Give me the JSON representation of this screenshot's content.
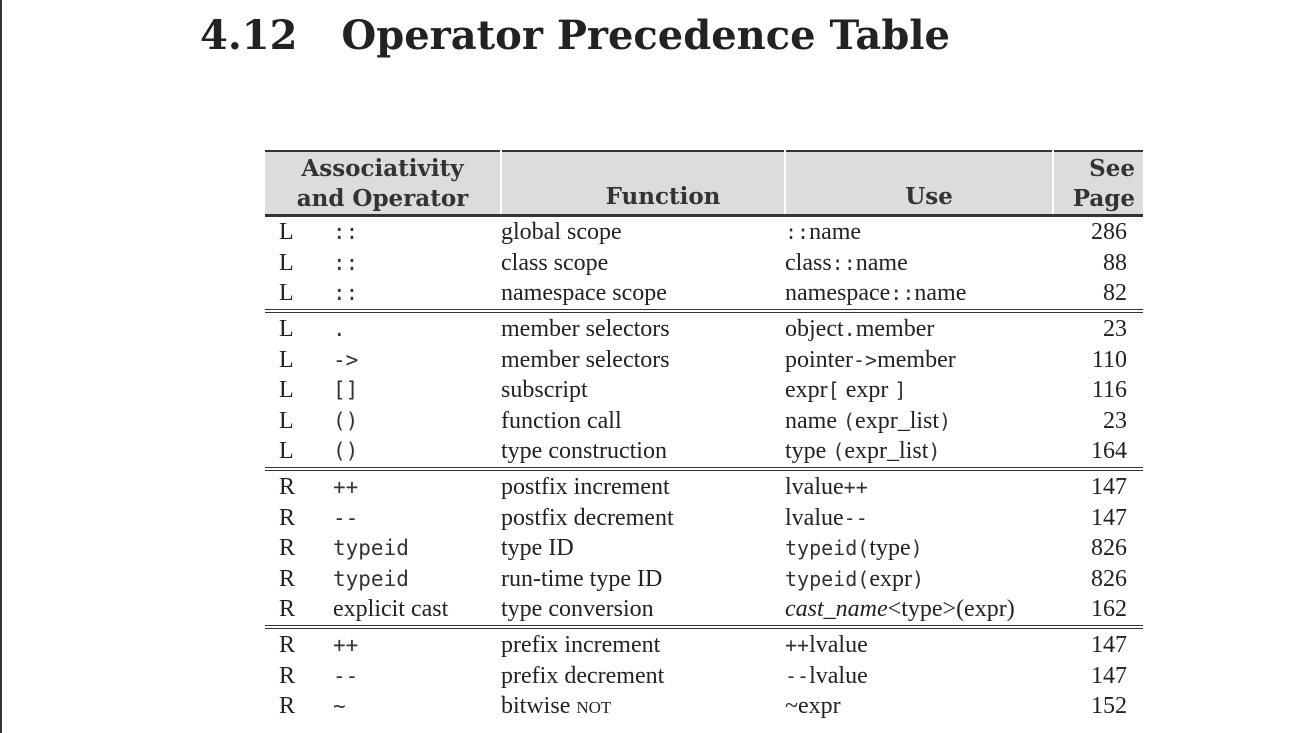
{
  "section": {
    "number": "4.12",
    "title": "Operator Precedence Table"
  },
  "table": {
    "headers": {
      "assoc_line1": "Associativity",
      "assoc_line2": "and Operator",
      "function": "Function",
      "use": "Use",
      "page_line1": "See",
      "page_line2": "Page"
    },
    "groups": [
      [
        {
          "assoc": "L",
          "op": "::",
          "function": "global scope",
          "use": [
            {
              "t": "::",
              "s": "mono"
            },
            {
              "t": "name"
            }
          ],
          "page": "286"
        },
        {
          "assoc": "L",
          "op": "::",
          "function": "class scope",
          "use": [
            {
              "t": "class"
            },
            {
              "t": "::",
              "s": "mono"
            },
            {
              "t": "name"
            }
          ],
          "page": "88"
        },
        {
          "assoc": "L",
          "op": "::",
          "function": "namespace scope",
          "use": [
            {
              "t": "namespace"
            },
            {
              "t": "::",
              "s": "mono"
            },
            {
              "t": "name"
            }
          ],
          "page": "82"
        }
      ],
      [
        {
          "assoc": "L",
          "op": ".",
          "function": "member selectors",
          "use": [
            {
              "t": "object"
            },
            {
              "t": ".",
              "s": "mono"
            },
            {
              "t": "member"
            }
          ],
          "page": "23"
        },
        {
          "assoc": "L",
          "op": "->",
          "function": "member selectors",
          "use": [
            {
              "t": "pointer"
            },
            {
              "t": "->",
              "s": "mono"
            },
            {
              "t": "member"
            }
          ],
          "page": "110"
        },
        {
          "assoc": "L",
          "op": "[]",
          "function": "subscript",
          "use": [
            {
              "t": "expr"
            },
            {
              "t": "[",
              "s": "mono"
            },
            {
              "t": " expr "
            },
            {
              "t": "]",
              "s": "mono"
            }
          ],
          "page": "116"
        },
        {
          "assoc": "L",
          "op": "()",
          "function": "function call",
          "use": [
            {
              "t": "name "
            },
            {
              "t": "(",
              "s": "mono"
            },
            {
              "t": "expr_list"
            },
            {
              "t": ")",
              "s": "mono"
            }
          ],
          "page": "23"
        },
        {
          "assoc": "L",
          "op": "()",
          "function": "type construction",
          "use": [
            {
              "t": "type "
            },
            {
              "t": "(",
              "s": "mono"
            },
            {
              "t": "expr_list"
            },
            {
              "t": ")",
              "s": "mono"
            }
          ],
          "page": "164"
        }
      ],
      [
        {
          "assoc": "R",
          "op": "++",
          "function": "postfix increment",
          "use": [
            {
              "t": "lvalue"
            },
            {
              "t": "++",
              "s": "mono"
            }
          ],
          "page": "147"
        },
        {
          "assoc": "R",
          "op": "--",
          "function": "postfix decrement",
          "use": [
            {
              "t": "lvalue"
            },
            {
              "t": "--",
              "s": "mono"
            }
          ],
          "page": "147"
        },
        {
          "assoc": "R",
          "op": "typeid",
          "function": "type ID",
          "use": [
            {
              "t": "typeid",
              "s": "mono"
            },
            {
              "t": "(",
              "s": "mono"
            },
            {
              "t": "type"
            },
            {
              "t": ")",
              "s": "mono"
            }
          ],
          "page": "826"
        },
        {
          "assoc": "R",
          "op": "typeid",
          "function": "run-time type ID",
          "use": [
            {
              "t": "typeid",
              "s": "mono"
            },
            {
              "t": "(",
              "s": "mono"
            },
            {
              "t": "expr"
            },
            {
              "t": ")",
              "s": "mono"
            }
          ],
          "page": "826"
        },
        {
          "assoc": "R",
          "op": "explicit cast",
          "op_style": "text",
          "function": "type conversion",
          "use": [
            {
              "t": "cast_name",
              "s": "ital"
            },
            {
              "t": "<type>(expr)"
            }
          ],
          "page": "162"
        }
      ],
      [
        {
          "assoc": "R",
          "op": "++",
          "function": "prefix increment",
          "use": [
            {
              "t": "++",
              "s": "mono"
            },
            {
              "t": "lvalue"
            }
          ],
          "page": "147"
        },
        {
          "assoc": "R",
          "op": "--",
          "function": "prefix decrement",
          "use": [
            {
              "t": "--",
              "s": "mono"
            },
            {
              "t": "lvalue"
            }
          ],
          "page": "147"
        },
        {
          "assoc": "R",
          "op": "~",
          "function": [
            {
              "t": "bitwise "
            },
            {
              "t": "not",
              "s": "sc"
            }
          ],
          "use": [
            {
              "t": "~expr"
            }
          ],
          "page": "152"
        }
      ]
    ]
  }
}
